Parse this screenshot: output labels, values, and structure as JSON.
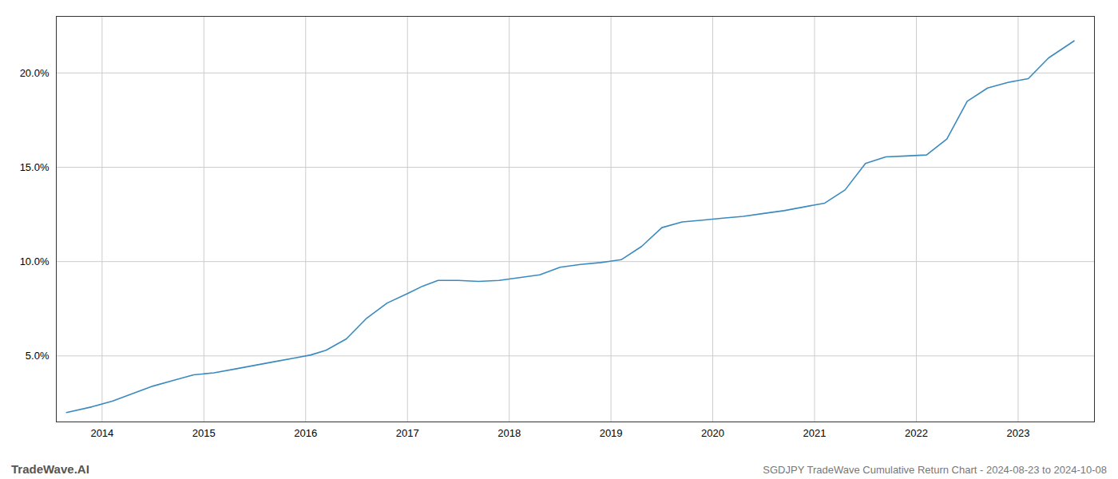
{
  "chart_data": {
    "type": "line",
    "title": "SGDJPY TradeWave Cumulative Return Chart - 2024-08-23 to 2024-10-08",
    "annotations": [
      "TradeWave.AI"
    ],
    "color": "#3a8abf",
    "grid": true,
    "xlim": [
      2013.55,
      2023.75
    ],
    "xticks": [
      2014,
      2015,
      2016,
      2017,
      2018,
      2019,
      2020,
      2021,
      2022,
      2023
    ],
    "ylim": [
      1.5,
      23.0
    ],
    "yticks": [
      {
        "value": 5.0,
        "label": "5.0%"
      },
      {
        "value": 10.0,
        "label": "10.0%"
      },
      {
        "value": 15.0,
        "label": "15.0%"
      },
      {
        "value": 20.0,
        "label": "20.0%"
      }
    ],
    "x": [
      2013.65,
      2013.9,
      2014.1,
      2014.3,
      2014.5,
      2014.7,
      2014.9,
      2015.1,
      2015.3,
      2015.5,
      2015.7,
      2015.9,
      2016.05,
      2016.2,
      2016.4,
      2016.6,
      2016.8,
      2017.0,
      2017.15,
      2017.3,
      2017.5,
      2017.7,
      2017.9,
      2018.1,
      2018.3,
      2018.5,
      2018.7,
      2018.9,
      2019.1,
      2019.3,
      2019.5,
      2019.7,
      2019.9,
      2020.1,
      2020.3,
      2020.5,
      2020.7,
      2020.9,
      2021.1,
      2021.3,
      2021.5,
      2021.7,
      2021.9,
      2022.1,
      2022.3,
      2022.5,
      2022.7,
      2022.9,
      2023.1,
      2023.3,
      2023.55
    ],
    "values": [
      2.0,
      2.3,
      2.6,
      3.0,
      3.4,
      3.7,
      4.0,
      4.1,
      4.3,
      4.5,
      4.7,
      4.9,
      5.05,
      5.3,
      5.9,
      7.0,
      7.8,
      8.3,
      8.7,
      9.0,
      9.0,
      8.95,
      9.0,
      9.15,
      9.3,
      9.7,
      9.85,
      9.95,
      10.1,
      10.8,
      11.8,
      12.1,
      12.2,
      12.3,
      12.4,
      12.55,
      12.7,
      12.9,
      13.1,
      13.8,
      15.2,
      15.55,
      15.6,
      15.65,
      16.5,
      18.5,
      19.2,
      19.5,
      19.7,
      20.8,
      21.7
    ]
  }
}
